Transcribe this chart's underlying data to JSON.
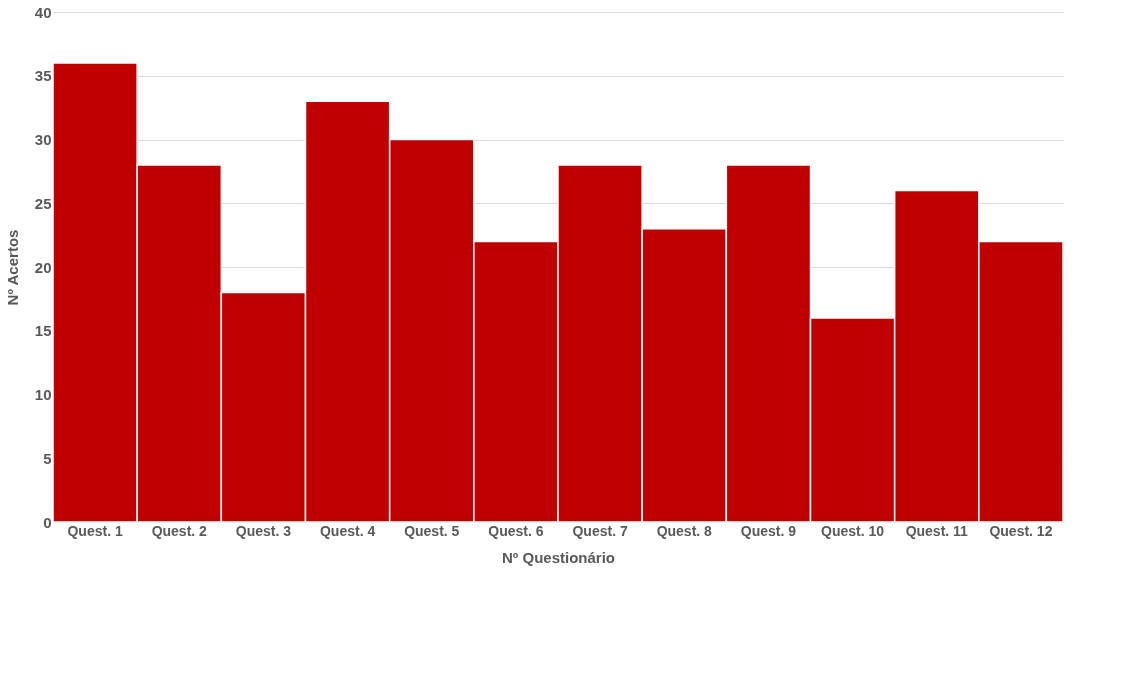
{
  "chart_data": {
    "type": "bar",
    "xlabel": "Nº Questionário",
    "ylabel": "Nº Acertos",
    "categories": [
      "Quest. 1",
      "Quest. 2",
      "Quest. 3",
      "Quest. 4",
      "Quest. 5",
      "Quest. 6",
      "Quest. 7",
      "Quest. 8",
      "Quest. 9",
      "Quest. 10",
      "Quest. 11",
      "Quest. 12"
    ],
    "values": [
      36,
      28,
      18,
      33,
      30,
      22,
      28,
      23,
      28,
      16,
      26,
      22
    ],
    "color": "#c00000",
    "ylim": [
      0,
      40
    ],
    "yticks": [
      0,
      5,
      10,
      15,
      20,
      25,
      30,
      35,
      40
    ],
    "grid": "y"
  }
}
